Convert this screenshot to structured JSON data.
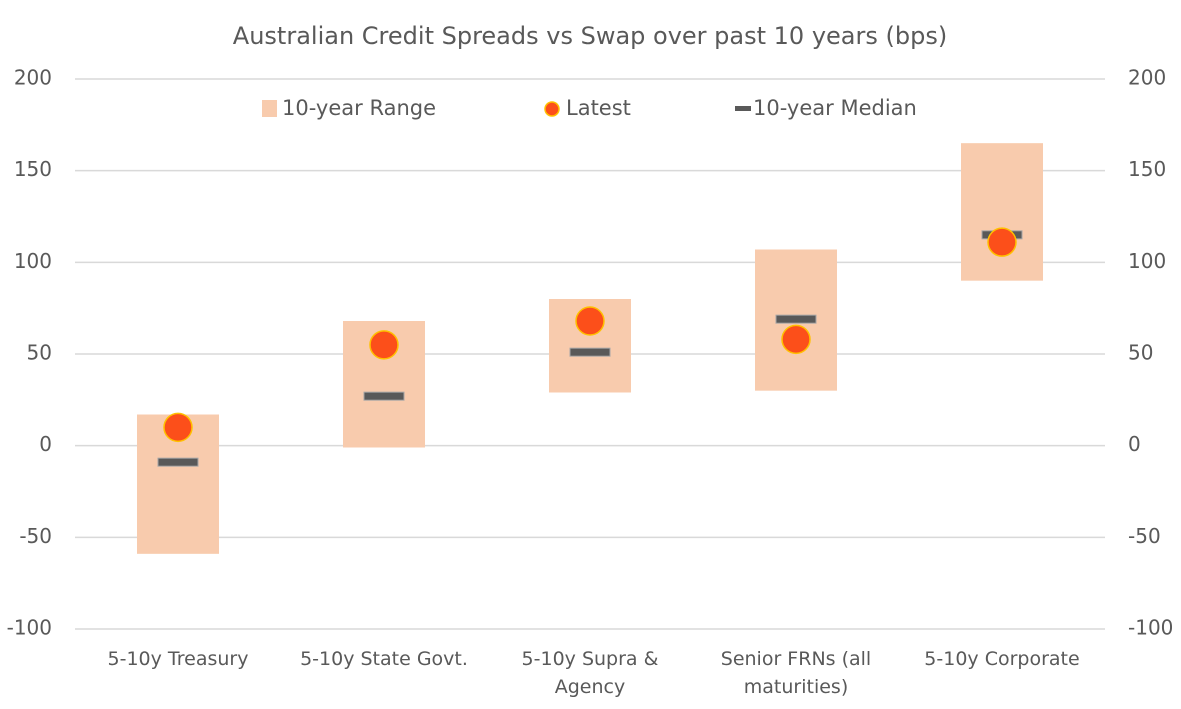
{
  "chart_data": {
    "type": "range",
    "title": "Australian Credit Spreads vs Swap over past 10 years (bps)",
    "categories": [
      "5-10y Treasury",
      "5-10y State Govt.",
      "5-10y Supra & Agency",
      "Senior FRNs (all maturities)",
      "5-10y Corporate"
    ],
    "series": [
      {
        "name": "10-year Range",
        "color": "#f8cbad",
        "low": [
          -59,
          -1,
          29,
          30,
          90
        ],
        "high": [
          17,
          68,
          80,
          107,
          165
        ]
      },
      {
        "name": "Latest",
        "color": "#fc4f1a",
        "values": [
          10,
          55,
          68,
          58,
          111
        ]
      },
      {
        "name": "10-year Median",
        "color": "#595959",
        "values": [
          -9,
          27,
          51,
          69,
          115
        ]
      }
    ],
    "ylim": [
      -100,
      200
    ],
    "yticks": [
      -100,
      -50,
      0,
      50,
      100,
      150,
      200
    ],
    "y2lim": [
      -100,
      200
    ],
    "y2ticks": [
      -100,
      -50,
      0,
      50,
      100,
      150,
      200
    ],
    "grid": true
  }
}
